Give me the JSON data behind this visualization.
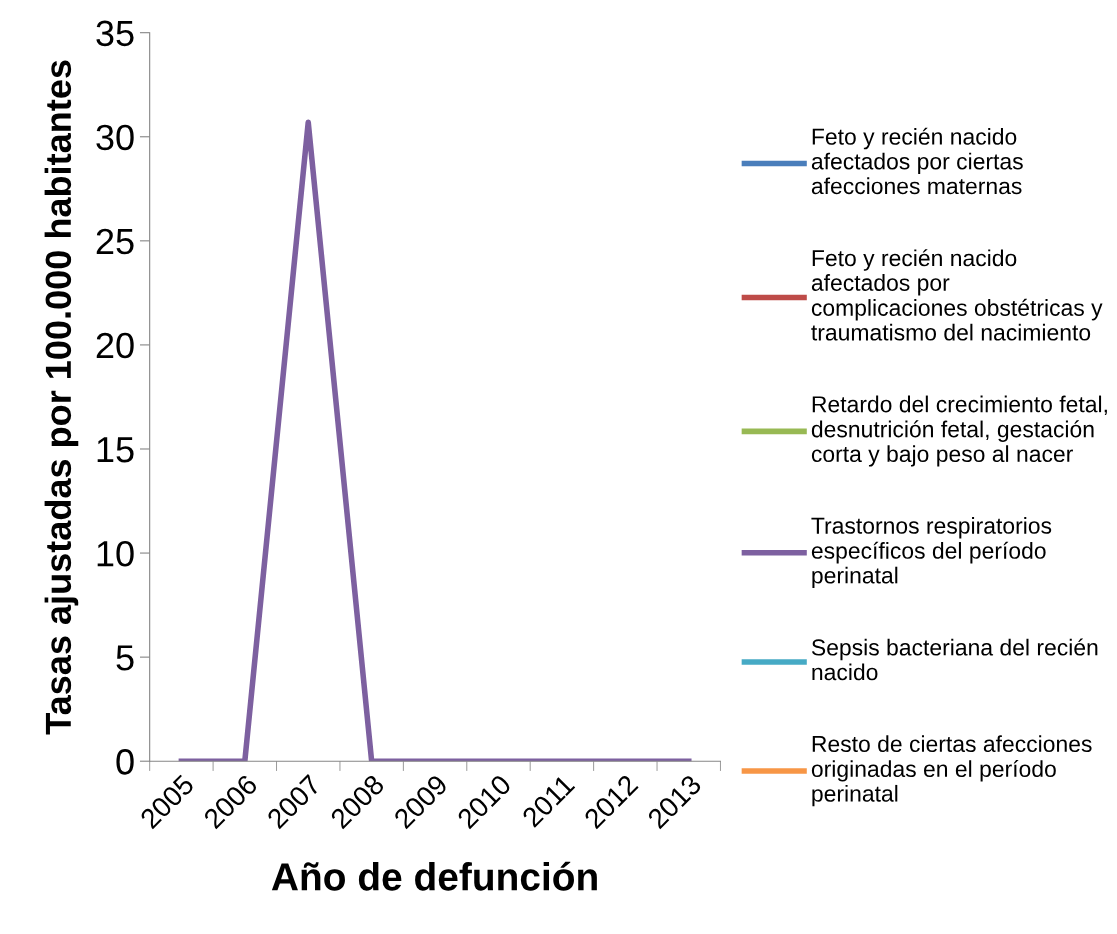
{
  "chart_data": {
    "type": "line",
    "xlabel": "Año de defunción",
    "ylabel": "Tasas ajustadas por 100.000 habitantes",
    "categories": [
      "2005",
      "2006",
      "2007",
      "2008",
      "2009",
      "2010",
      "2011",
      "2012",
      "2013"
    ],
    "series": [
      {
        "name": "Feto y recién nacido afectados por ciertas afecciones maternas",
        "color": "#4a7ebb",
        "values": [
          null,
          null,
          null,
          null,
          null,
          null,
          null,
          null,
          null
        ]
      },
      {
        "name": "Feto y recién nacido afectados por complicaciones obstétricas y traumatismo del nacimiento",
        "color": "#be4b48",
        "values": [
          null,
          null,
          null,
          null,
          null,
          null,
          null,
          null,
          null
        ]
      },
      {
        "name": "Retardo del crecimiento fetal, desnutrición fetal, gestación corta y bajo peso al nacer",
        "color": "#98b954",
        "values": [
          null,
          null,
          null,
          null,
          null,
          null,
          null,
          null,
          null
        ]
      },
      {
        "name": "Trastornos respiratorios específicos del período perinatal",
        "color": "#7d60a0",
        "values": [
          0,
          0,
          30.7,
          0,
          0,
          0,
          0,
          0,
          0
        ]
      },
      {
        "name": "Sepsis bacteriana del recién nacido",
        "color": "#46aac5",
        "values": [
          null,
          null,
          null,
          null,
          null,
          null,
          null,
          null,
          null
        ]
      },
      {
        "name": "Resto de ciertas afecciones originadas en el período perinatal",
        "color": "#f79646",
        "values": [
          null,
          null,
          null,
          null,
          null,
          null,
          null,
          null,
          null
        ]
      }
    ],
    "ylim": [
      0,
      35
    ],
    "yticks": [
      0,
      5,
      10,
      15,
      20,
      25,
      30,
      35
    ],
    "grid": false,
    "legend": "right",
    "marker": "none",
    "line_style": "solid"
  }
}
